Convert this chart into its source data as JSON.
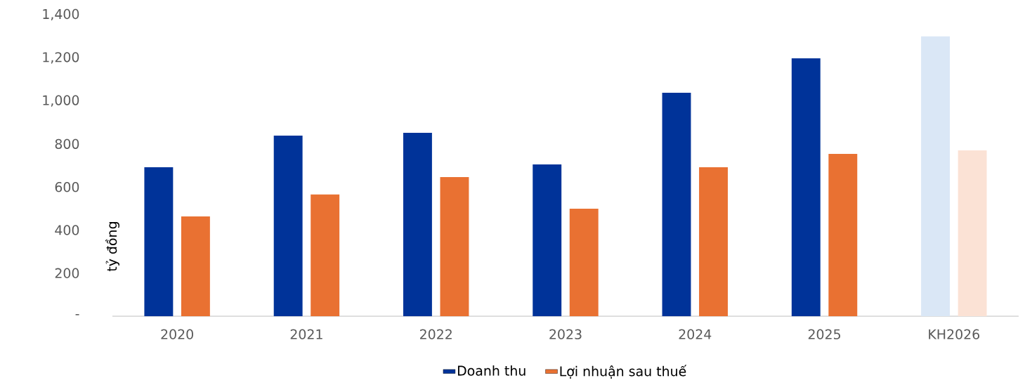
{
  "chart_data": {
    "type": "bar",
    "ylabel": "tỷ đồng",
    "categories": [
      "2020",
      "2021",
      "2022",
      "2023",
      "2024",
      "2025",
      "KH2026"
    ],
    "series": [
      {
        "name": "Doanh thu",
        "color": "#003399",
        "colors": [
          "#003399",
          "#003399",
          "#003399",
          "#003399",
          "#003399",
          "#003399",
          "#dae7f6"
        ],
        "values": [
          692,
          839,
          852,
          705,
          1038,
          1198,
          1300
        ]
      },
      {
        "name": "Lợi nhuận sau thuế",
        "color": "#e97132",
        "colors": [
          "#e97132",
          "#e97132",
          "#e97132",
          "#e97132",
          "#e97132",
          "#e97132",
          "#fbe2d5"
        ],
        "values": [
          463,
          565,
          646,
          499,
          692,
          754,
          770
        ]
      }
    ],
    "ylim": [
      0,
      1400
    ],
    "yticks": [
      {
        "value": 0,
        "label": "-"
      },
      200,
      400,
      600,
      800,
      {
        "value": 1000,
        "label": "1,000"
      },
      {
        "value": 1200,
        "label": "1,200"
      },
      {
        "value": 1400,
        "label": "1,400"
      }
    ],
    "grid": false,
    "legend": "bottom"
  }
}
